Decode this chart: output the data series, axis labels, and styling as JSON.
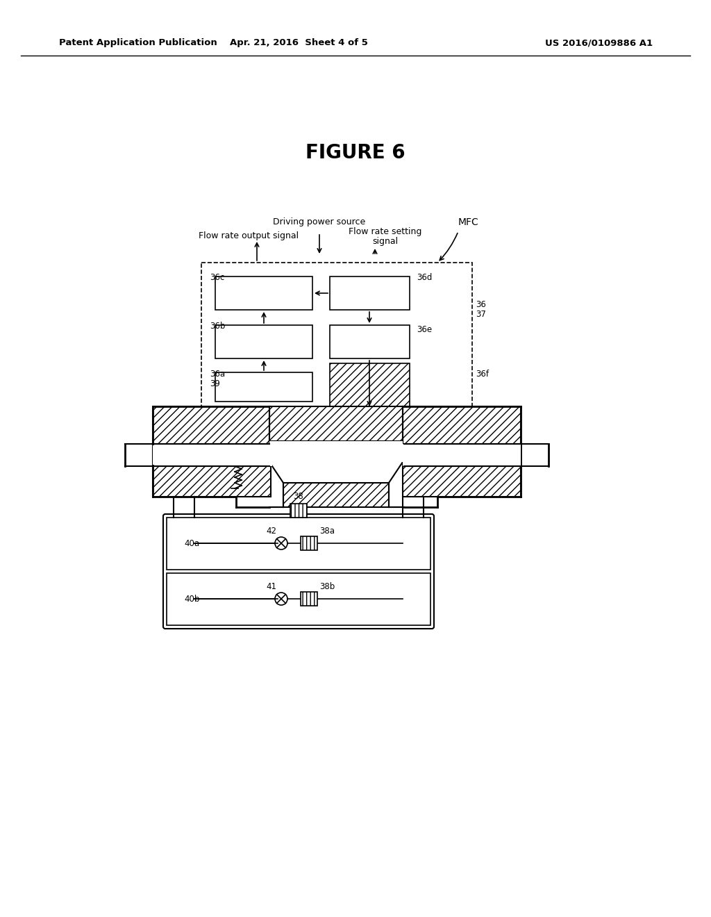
{
  "bg_color": "#ffffff",
  "title": "FIGURE 6",
  "header_left": "Patent Application Publication",
  "header_center": "Apr. 21, 2016  Sheet 4 of 5",
  "header_right": "US 2016/0109886 A1"
}
